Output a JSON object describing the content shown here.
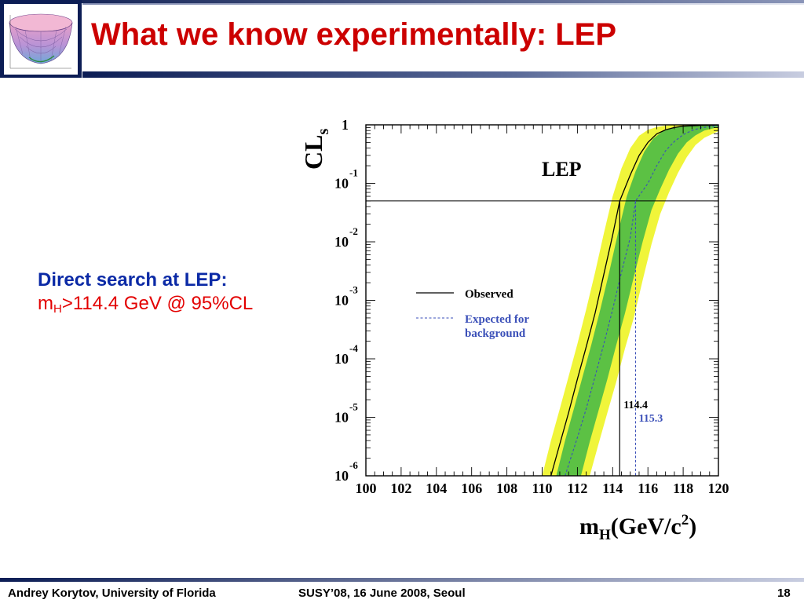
{
  "slide": {
    "title": "What we know experimentally: LEP",
    "text": {
      "heading": "Direct search at LEP:",
      "limit_symbol": "m",
      "limit_subscript": "H",
      "limit_rest": ">114.4 GeV @ 95%CL"
    },
    "footer": {
      "author": "Andrey Korytov, University of Florida",
      "conference": "SUSY’08, 16 June 2008, Seoul",
      "page": "18"
    },
    "colors": {
      "title": "#cc0000",
      "heading": "#0b2aa6",
      "limit": "#e30000",
      "band_dark": "#0c1d55"
    },
    "logo_icon": "paraboloid-surface-icon"
  },
  "chart_data": {
    "type": "line",
    "panel_label": "LEP",
    "ylabel_main": "CL",
    "ylabel_sub": "s",
    "xlabel_main": "m",
    "xlabel_sub": "H",
    "xlabel_unit": "(GeV/c",
    "xlabel_exp": "2",
    "xlabel_close": ")",
    "xlim": [
      100,
      120
    ],
    "ylim": [
      1e-06,
      1
    ],
    "yscale": "log",
    "x_ticks": [
      "100",
      "102",
      "104",
      "106",
      "108",
      "110",
      "112",
      "114",
      "116",
      "118",
      "120"
    ],
    "y_ticks": [
      {
        "base": "1",
        "exp": ""
      },
      {
        "base": "10",
        "exp": "-1"
      },
      {
        "base": "10",
        "exp": "-2"
      },
      {
        "base": "10",
        "exp": "-3"
      },
      {
        "base": "10",
        "exp": "-4"
      },
      {
        "base": "10",
        "exp": "-5"
      },
      {
        "base": "10",
        "exp": "-6"
      }
    ],
    "cl_line_y": 0.05,
    "observed_limit": {
      "value": 114.4,
      "label": "114.4"
    },
    "expected_limit": {
      "value": 115.3,
      "label": "115.3"
    },
    "legend": {
      "placement": "center-left",
      "observed": "Observed",
      "expected_1": "Expected for",
      "expected_2": "background"
    },
    "series": [
      {
        "name": "Observed",
        "style": "solid",
        "color": "#000000",
        "x": [
          110.5,
          111.0,
          111.5,
          112.0,
          112.5,
          113.0,
          113.5,
          114.0,
          114.4,
          115.0,
          115.5,
          116.0,
          116.5,
          117.0,
          117.5,
          118.0,
          119.0,
          120.0
        ],
        "y": [
          1e-06,
          3.5e-06,
          1.2e-05,
          4.5e-05,
          0.00016,
          0.0006,
          0.0028,
          0.013,
          0.05,
          0.14,
          0.3,
          0.5,
          0.7,
          0.82,
          0.9,
          0.95,
          0.98,
          0.99
        ]
      },
      {
        "name": "Expected for background",
        "style": "dashed",
        "color": "#3a4fb8",
        "x": [
          111.3,
          112.0,
          112.5,
          113.0,
          113.5,
          114.0,
          114.5,
          115.0,
          115.3,
          116.0,
          116.5,
          117.0,
          117.5,
          118.0,
          118.5,
          119.0,
          120.0
        ],
        "y": [
          1e-06,
          4.5e-06,
          1.4e-05,
          5e-05,
          0.00018,
          0.0007,
          0.003,
          0.012,
          0.05,
          0.1,
          0.2,
          0.36,
          0.52,
          0.68,
          0.8,
          0.89,
          0.97
        ]
      }
    ],
    "bands": [
      {
        "level": "2sigma",
        "color": "#f0f53a",
        "lower": {
          "x": [
            112.7,
            113.2,
            113.7,
            114.2,
            114.7,
            115.2,
            115.7,
            116.2,
            116.7,
            117.2,
            117.7,
            118.2,
            118.7,
            119.2,
            120.0
          ],
          "y": [
            1e-06,
            3.5e-06,
            1.2e-05,
            4e-05,
            0.00015,
            0.0005,
            0.0022,
            0.009,
            0.03,
            0.07,
            0.15,
            0.28,
            0.45,
            0.6,
            0.78
          ]
        },
        "upper": {
          "x": [
            110.0,
            110.5,
            111.0,
            111.5,
            112.0,
            112.5,
            113.0,
            113.5,
            114.0,
            114.5,
            115.0,
            115.5,
            116.0,
            116.5,
            117.0,
            117.5,
            118.0,
            119.0,
            120.0
          ],
          "y": [
            1e-06,
            4e-06,
            1.4e-05,
            5e-05,
            0.00018,
            0.0007,
            0.003,
            0.014,
            0.06,
            0.18,
            0.4,
            0.65,
            0.82,
            0.92,
            0.97,
            0.99,
            1.0,
            1.0,
            1.0
          ]
        }
      },
      {
        "level": "1sigma",
        "color": "#5cc144",
        "lower": {
          "x": [
            112.2,
            112.7,
            113.2,
            113.7,
            114.2,
            114.7,
            115.2,
            115.7,
            116.2,
            116.7,
            117.2,
            117.7,
            118.2,
            118.7,
            119.2,
            120.0
          ],
          "y": [
            1e-06,
            3.8e-06,
            1.3e-05,
            4.5e-05,
            0.00017,
            0.0006,
            0.0025,
            0.01,
            0.035,
            0.08,
            0.17,
            0.32,
            0.5,
            0.66,
            0.8,
            0.92
          ]
        },
        "upper": {
          "x": [
            110.8,
            111.3,
            111.8,
            112.3,
            112.8,
            113.3,
            113.8,
            114.3,
            114.8,
            115.3,
            115.8,
            116.3,
            116.8,
            117.3,
            117.8,
            118.5,
            119.5,
            120.0
          ],
          "y": [
            1e-06,
            4e-06,
            1.4e-05,
            5e-05,
            0.00018,
            0.0007,
            0.003,
            0.014,
            0.06,
            0.16,
            0.35,
            0.58,
            0.76,
            0.88,
            0.94,
            0.98,
            0.99,
            0.995
          ]
        }
      }
    ]
  }
}
